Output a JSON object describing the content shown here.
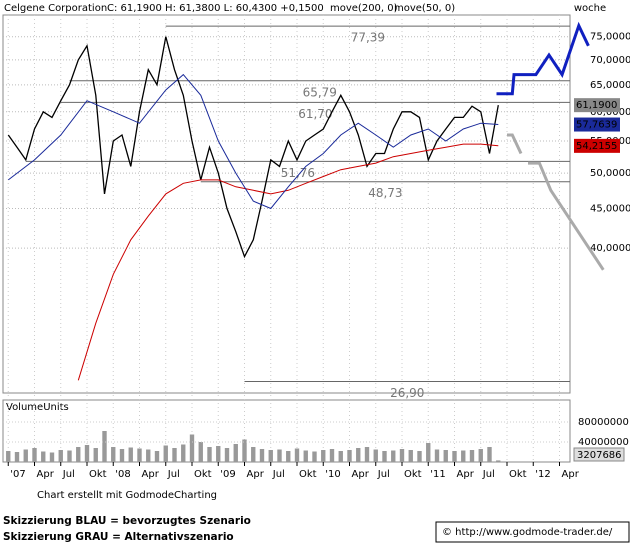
{
  "chart_data": {
    "type": "line",
    "title": "Celgene Corporation",
    "quote": "C: 61,1900 H: 61,3800 L: 60,4300 +0,1500",
    "period": "woche",
    "log_scale": true,
    "grid": true,
    "x": [
      0,
      1,
      2,
      3,
      4,
      5,
      6,
      7,
      8,
      9,
      10,
      11,
      12,
      13,
      14,
      15,
      16,
      17,
      18,
      19,
      20,
      21,
      22,
      23,
      24,
      25,
      26,
      27,
      28,
      29,
      30,
      31,
      32,
      33,
      34,
      35,
      36,
      37,
      38,
      39,
      40,
      41,
      42,
      43,
      44,
      45,
      46,
      47,
      48,
      49,
      50,
      51,
      52,
      53,
      54,
      55,
      56
    ],
    "xlim": [
      -0.6,
      64.2
    ],
    "xticks": [
      {
        "value": 0,
        "label": "'07"
      },
      {
        "value": 3,
        "label": "Apr"
      },
      {
        "value": 6,
        "label": "Jul"
      },
      {
        "value": 9,
        "label": "Okt"
      },
      {
        "value": 12,
        "label": "'08"
      },
      {
        "value": 15,
        "label": "Apr"
      },
      {
        "value": 18,
        "label": "Jul"
      },
      {
        "value": 21,
        "label": "Okt"
      },
      {
        "value": 24,
        "label": "'09"
      },
      {
        "value": 27,
        "label": "Apr"
      },
      {
        "value": 30,
        "label": "Jul"
      },
      {
        "value": 33,
        "label": "Okt"
      },
      {
        "value": 36,
        "label": "'10"
      },
      {
        "value": 39,
        "label": "Apr"
      },
      {
        "value": 42,
        "label": "Jul"
      },
      {
        "value": 45,
        "label": "Okt"
      },
      {
        "value": 48,
        "label": "'11"
      },
      {
        "value": 51,
        "label": "Apr"
      },
      {
        "value": 54,
        "label": "Jul"
      },
      {
        "value": 57,
        "label": "Okt"
      },
      {
        "value": 60,
        "label": "'12"
      },
      {
        "value": 63,
        "label": "Apr"
      }
    ],
    "ylim": [
      26,
      80
    ],
    "yticks": [
      {
        "value": 40,
        "label": "40,0000"
      },
      {
        "value": 45,
        "label": "45,0000"
      },
      {
        "value": 50,
        "label": "50,0000"
      },
      {
        "value": 55,
        "label": "55,0000"
      },
      {
        "value": 60,
        "label": "60,0000"
      },
      {
        "value": 65,
        "label": "65,0000"
      },
      {
        "value": 70,
        "label": "70,0000"
      },
      {
        "value": 75,
        "label": "75,0000"
      }
    ],
    "series": [
      {
        "color": "#000000",
        "last_label": "61,1900",
        "values": [
          56,
          54,
          52,
          57,
          60,
          59,
          62,
          65,
          70,
          73,
          63,
          47,
          55,
          56,
          51,
          60,
          68,
          65,
          75,
          68,
          63,
          55,
          49,
          54,
          50,
          45,
          42,
          39,
          41,
          46,
          52,
          51,
          55,
          52,
          55,
          56,
          57,
          60,
          63,
          60,
          56,
          51,
          53,
          53,
          57,
          60,
          60,
          59,
          52,
          55,
          57,
          59,
          59,
          61,
          60,
          53,
          61.19
        ]
      },
      {
        "name": "move(200, 0)",
        "color": "#cc0000",
        "last_label": "54,2155",
        "x": [
          8,
          10,
          12,
          14,
          16,
          18,
          20,
          22,
          24,
          26,
          28,
          30,
          32,
          34,
          36,
          38,
          40,
          42,
          44,
          46,
          48,
          50,
          52,
          54,
          56
        ],
        "values": [
          27,
          32,
          37,
          41,
          44,
          47,
          48.5,
          49,
          49,
          48,
          47.5,
          47,
          47.5,
          48.5,
          49.5,
          50.5,
          51,
          51.5,
          52.5,
          53,
          53.5,
          54,
          54.5,
          54.5,
          54.2155
        ]
      },
      {
        "name": "move(50, 0)",
        "color": "#1a2a9a",
        "last_label": "57,7639",
        "x": [
          0,
          3,
          6,
          9,
          12,
          15,
          18,
          20,
          22,
          24,
          26,
          28,
          30,
          32,
          34,
          36,
          38,
          40,
          42,
          44,
          46,
          48,
          50,
          52,
          54,
          56
        ],
        "values": [
          49,
          52,
          56,
          62,
          60,
          58,
          64,
          67,
          63,
          55,
          50,
          46,
          45,
          48,
          51,
          53,
          56,
          58,
          56,
          54,
          56,
          57,
          55,
          57,
          58,
          57.7639
        ]
      }
    ],
    "levels": [
      {
        "value": 77.39,
        "label": "77,39"
      },
      {
        "value": 65.79,
        "label": "65,79"
      },
      {
        "value": 61.7,
        "label": "61,70"
      },
      {
        "value": 51.76,
        "label": "51,76"
      },
      {
        "value": 48.73,
        "label": "48,73"
      },
      {
        "value": 26.9,
        "label": "26,90"
      }
    ],
    "scenarios": [
      {
        "name": "Skizzierung BLAU = bevorzugtes Szenario",
        "color": "#1020c0",
        "x": [
          55.8,
          57.6,
          57.8,
          60.3,
          61.8,
          63.3,
          65.2,
          66.3
        ],
        "values": [
          63.3,
          63.3,
          67,
          67,
          71,
          67,
          77.5,
          73
        ]
      },
      {
        "name": "Skizzierung GRAU = Alternativszenario",
        "color": "#aaaaaa",
        "x": [
          57,
          57.6,
          58.6,
          null,
          59.4,
          60.7,
          62,
          68
        ],
        "values": [
          56,
          56,
          53,
          null,
          51.5,
          51.5,
          47.5,
          37.5
        ]
      }
    ],
    "volume": {
      "label": "VolumeUnits",
      "color": "#999999",
      "ylim": [
        0,
        124000000
      ],
      "yticks": [
        40000000,
        80000000
      ],
      "values": [
        22000000,
        20000000,
        25000000,
        28000000,
        21000000,
        19000000,
        24000000,
        23000000,
        30000000,
        34000000,
        28000000,
        62000000,
        30000000,
        26000000,
        29000000,
        27000000,
        25000000,
        22000000,
        33000000,
        28000000,
        35000000,
        55000000,
        40000000,
        30000000,
        32000000,
        28000000,
        36000000,
        45000000,
        30000000,
        26000000,
        24000000,
        25000000,
        22000000,
        27000000,
        23000000,
        21000000,
        24000000,
        26000000,
        22000000,
        24000000,
        28000000,
        30000000,
        25000000,
        22000000,
        23000000,
        26000000,
        24000000,
        22000000,
        38000000,
        25000000,
        24000000,
        22000000,
        23000000,
        24000000,
        26000000,
        30000000,
        3207686
      ]
    },
    "credit": "Chart erstellt mit GodmodeCharting",
    "copyright": "© http://www.godmode-trader.de/"
  }
}
